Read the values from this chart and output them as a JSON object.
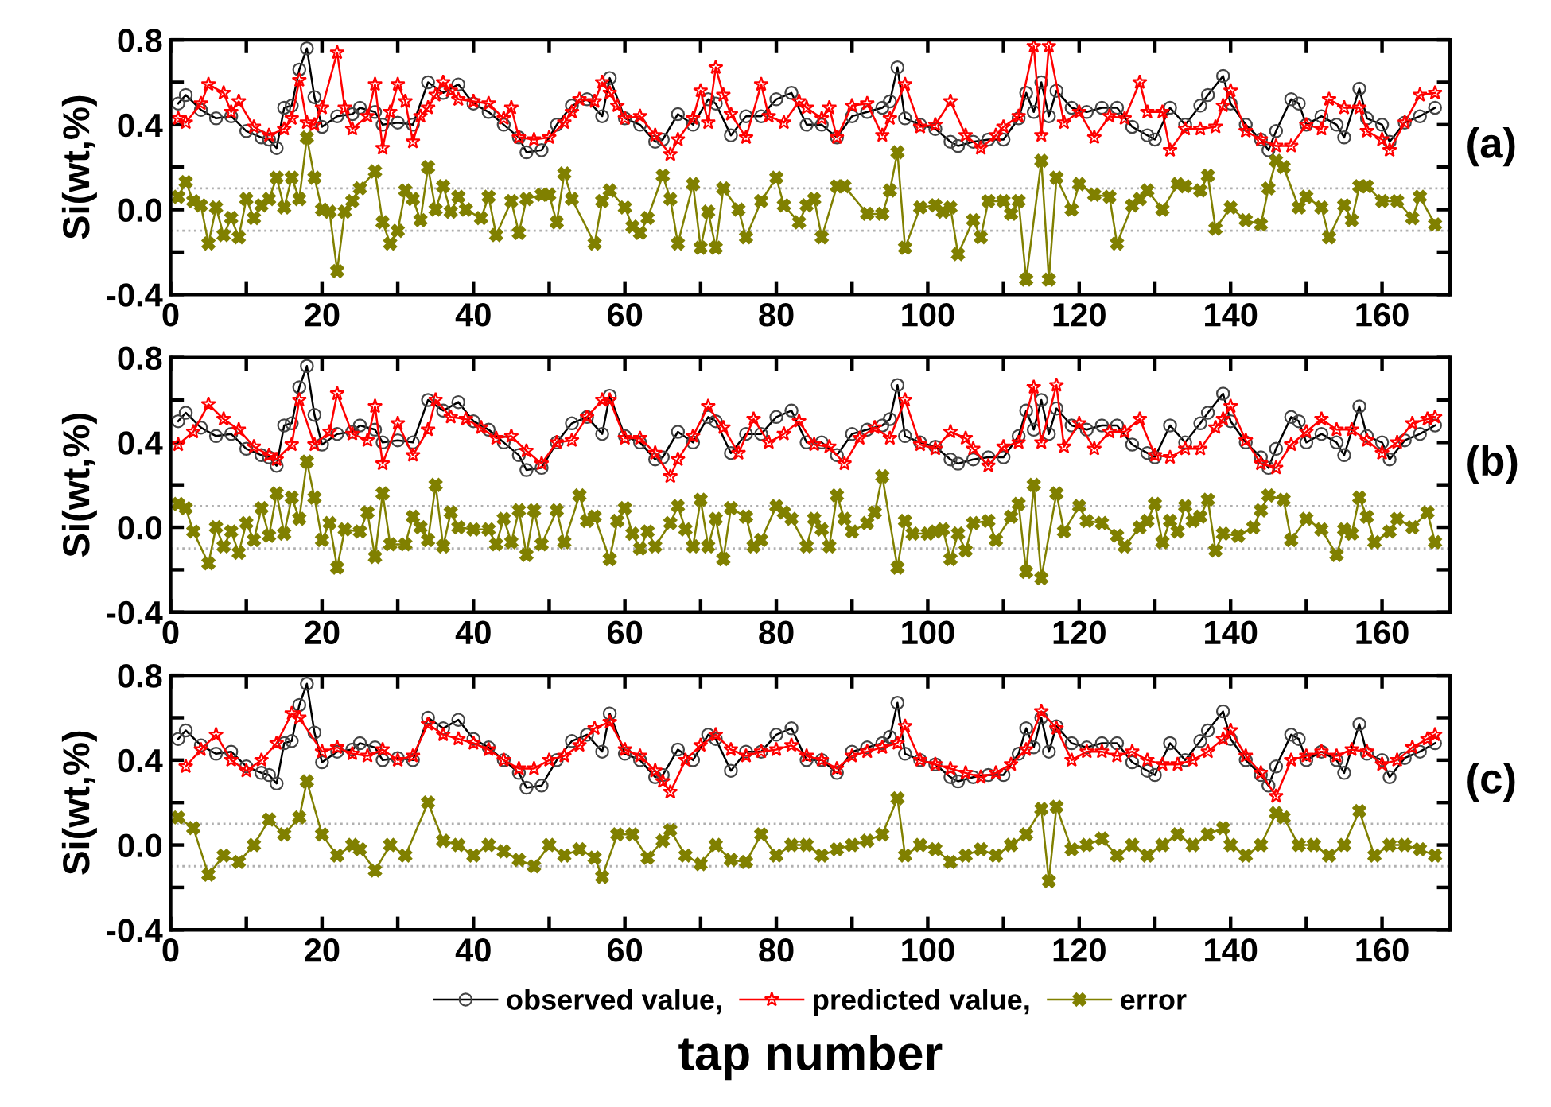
{
  "chart_data": [
    {
      "type": "line",
      "ylabel": "Si(wt,%)",
      "annotations": [
        "(a)"
      ],
      "xlim": [
        0,
        169
      ],
      "ylim": [
        -0.4,
        0.8
      ],
      "xticks": [
        0,
        {
          "value": 10,
          "label": null
        },
        20,
        {
          "value": 30,
          "label": null
        },
        40,
        {
          "value": 50,
          "label": null
        },
        60,
        {
          "value": 70,
          "label": null
        },
        80,
        {
          "value": 90,
          "label": null
        },
        100,
        {
          "value": 110,
          "label": null
        },
        120,
        {
          "value": 130,
          "label": null
        },
        140,
        {
          "value": 150,
          "label": null
        },
        160
      ],
      "yticks": [
        {
          "value": -0.4,
          "label": "-0.4"
        },
        {
          "value": -0.2,
          "label": null
        },
        {
          "value": 0,
          "label": "0.0"
        },
        {
          "value": 0.2,
          "label": null
        },
        {
          "value": 0.4,
          "label": "0.4"
        },
        {
          "value": 0.6,
          "label": null
        },
        {
          "value": 0.8,
          "label": "0.8"
        }
      ],
      "grid": false,
      "legend": false,
      "line_style": "solid",
      "ref_lines": [
        {
          "axis": "y",
          "value": 0.1,
          "color": "#b0b0b0",
          "line_style": "dotted"
        },
        {
          "axis": "y",
          "value": -0.1,
          "color": "#b0b0b0",
          "line_style": "dotted"
        }
      ],
      "series": [
        {
          "color": "#000000",
          "marker": "circle",
          "x": [
            1,
            2,
            4,
            6,
            8,
            10,
            12,
            13,
            14,
            15,
            16,
            17,
            18,
            19,
            20,
            22,
            24,
            25,
            27,
            28,
            30,
            32,
            34,
            36,
            38,
            40,
            42,
            44,
            46,
            47,
            49,
            51,
            53,
            55,
            57,
            58,
            60,
            62,
            64,
            65,
            67,
            69,
            71,
            72,
            74,
            76,
            78,
            80,
            82,
            84,
            86,
            88,
            90,
            92,
            94,
            95,
            96,
            97,
            99,
            101,
            103,
            104,
            106,
            108,
            110,
            112,
            113,
            114,
            115,
            116,
            117,
            119,
            121,
            123,
            125,
            127,
            129,
            130,
            132,
            134,
            136,
            137,
            139,
            140,
            142,
            144,
            145,
            146,
            148,
            149,
            150,
            152,
            154,
            155,
            157,
            158,
            160,
            161,
            163,
            165,
            167
          ],
          "values": [
            0.5,
            0.54,
            0.47,
            0.43,
            0.44,
            0.37,
            0.34,
            0.33,
            0.29,
            0.48,
            0.49,
            0.66,
            0.76,
            0.53,
            0.39,
            0.44,
            0.45,
            0.48,
            0.46,
            0.4,
            0.41,
            0.4,
            0.6,
            0.55,
            0.59,
            0.5,
            0.46,
            0.4,
            0.34,
            0.27,
            0.28,
            0.4,
            0.49,
            0.52,
            0.44,
            0.62,
            0.43,
            0.4,
            0.32,
            0.33,
            0.45,
            0.4,
            0.52,
            0.5,
            0.35,
            0.44,
            0.44,
            0.52,
            0.55,
            0.4,
            0.4,
            0.34,
            0.44,
            0.46,
            0.48,
            0.51,
            0.67,
            0.43,
            0.4,
            0.38,
            0.32,
            0.3,
            0.32,
            0.33,
            0.33,
            0.43,
            0.55,
            0.46,
            0.6,
            0.44,
            0.56,
            0.48,
            0.46,
            0.48,
            0.48,
            0.39,
            0.35,
            0.33,
            0.48,
            0.4,
            0.49,
            0.54,
            0.63,
            0.5,
            0.4,
            0.33,
            0.28,
            0.37,
            0.52,
            0.5,
            0.4,
            0.44,
            0.4,
            0.34,
            0.57,
            0.43,
            0.4,
            0.32,
            0.41,
            0.44,
            0.48
          ]
        },
        {
          "color": "#ff0000",
          "marker": "star",
          "x": [
            1,
            2,
            4,
            5,
            7,
            8,
            9,
            11,
            13,
            15,
            16,
            17,
            18,
            19,
            20,
            22,
            23,
            24,
            26,
            27,
            28,
            29,
            30,
            31,
            32,
            33,
            34,
            35,
            36,
            37,
            38,
            40,
            42,
            44,
            45,
            46,
            48,
            50,
            52,
            53,
            54,
            56,
            57,
            58,
            59,
            60,
            62,
            64,
            66,
            67,
            69,
            70,
            71,
            72,
            73,
            74,
            76,
            78,
            79,
            81,
            83,
            84,
            86,
            87,
            88,
            90,
            92,
            94,
            95,
            97,
            99,
            101,
            103,
            105,
            107,
            109,
            110,
            112,
            114,
            115,
            116,
            118,
            120,
            122,
            124,
            126,
            128,
            129,
            131,
            132,
            134,
            136,
            138,
            139,
            140,
            142,
            144,
            146,
            148,
            150,
            152,
            153,
            155,
            157,
            158,
            160,
            161,
            163,
            165,
            167
          ],
          "values": [
            0.43,
            0.41,
            0.5,
            0.59,
            0.55,
            0.46,
            0.51,
            0.39,
            0.35,
            0.38,
            0.43,
            0.61,
            0.41,
            0.4,
            0.48,
            0.74,
            0.48,
            0.38,
            0.44,
            0.59,
            0.29,
            0.46,
            0.59,
            0.51,
            0.32,
            0.44,
            0.48,
            0.54,
            0.6,
            0.56,
            0.52,
            0.51,
            0.5,
            0.43,
            0.48,
            0.34,
            0.33,
            0.34,
            0.41,
            0.46,
            0.52,
            0.51,
            0.6,
            0.55,
            0.49,
            0.43,
            0.44,
            0.35,
            0.26,
            0.33,
            0.43,
            0.56,
            0.41,
            0.67,
            0.54,
            0.45,
            0.34,
            0.59,
            0.44,
            0.41,
            0.51,
            0.48,
            0.43,
            0.48,
            0.34,
            0.49,
            0.5,
            0.35,
            0.43,
            0.59,
            0.39,
            0.4,
            0.51,
            0.35,
            0.29,
            0.35,
            0.39,
            0.44,
            0.77,
            0.35,
            0.77,
            0.41,
            0.46,
            0.34,
            0.44,
            0.43,
            0.6,
            0.46,
            0.46,
            0.28,
            0.38,
            0.38,
            0.39,
            0.49,
            0.56,
            0.37,
            0.33,
            0.3,
            0.3,
            0.4,
            0.38,
            0.52,
            0.48,
            0.48,
            0.37,
            0.33,
            0.28,
            0.41,
            0.54,
            0.55
          ]
        },
        {
          "color": "#808000",
          "marker": "cross",
          "x": [
            1,
            2,
            3,
            4,
            5,
            6,
            7,
            8,
            9,
            10,
            11,
            12,
            13,
            14,
            15,
            16,
            17,
            18,
            19,
            20,
            21,
            22,
            23,
            24,
            25,
            27,
            28,
            29,
            30,
            31,
            32,
            33,
            34,
            35,
            36,
            37,
            38,
            39,
            41,
            42,
            43,
            45,
            46,
            47,
            49,
            50,
            51,
            52,
            53,
            56,
            57,
            58,
            60,
            61,
            62,
            63,
            65,
            66,
            67,
            69,
            70,
            71,
            72,
            73,
            75,
            76,
            78,
            80,
            81,
            83,
            84,
            85,
            86,
            88,
            89,
            92,
            94,
            95,
            96,
            97,
            99,
            101,
            102,
            103,
            104,
            106,
            107,
            108,
            110,
            111,
            112,
            113,
            115,
            116,
            117,
            119,
            120,
            122,
            124,
            125,
            127,
            128,
            129,
            131,
            133,
            134,
            136,
            137,
            138,
            140,
            142,
            144,
            145,
            146,
            147,
            149,
            150,
            152,
            153,
            155,
            156,
            157,
            158,
            160,
            162,
            164,
            165,
            167
          ],
          "values": [
            0.06,
            0.13,
            0.04,
            0.02,
            -0.16,
            0.01,
            -0.12,
            -0.04,
            -0.13,
            0.05,
            -0.04,
            0.02,
            0.05,
            0.15,
            0.01,
            0.15,
            0.05,
            0.34,
            0.15,
            0.0,
            -0.01,
            -0.29,
            -0.01,
            0.04,
            0.1,
            0.18,
            -0.06,
            -0.16,
            -0.1,
            0.09,
            0.05,
            -0.05,
            0.2,
            0.0,
            0.11,
            -0.01,
            0.06,
            0.0,
            -0.04,
            0.06,
            -0.12,
            0.04,
            -0.11,
            0.05,
            0.07,
            0.07,
            -0.06,
            0.17,
            0.05,
            -0.16,
            0.04,
            0.09,
            0.01,
            -0.08,
            -0.11,
            -0.04,
            0.16,
            0.05,
            -0.16,
            0.12,
            -0.18,
            -0.01,
            -0.18,
            0.1,
            0.0,
            -0.13,
            0.04,
            0.15,
            0.02,
            -0.06,
            0.02,
            0.05,
            -0.13,
            0.11,
            0.11,
            -0.02,
            -0.02,
            0.09,
            0.27,
            -0.18,
            0.01,
            0.02,
            -0.01,
            0.01,
            -0.21,
            -0.05,
            -0.13,
            0.04,
            0.04,
            -0.02,
            0.04,
            -0.33,
            0.23,
            -0.33,
            0.15,
            0.0,
            0.12,
            0.07,
            0.06,
            -0.16,
            0.02,
            0.05,
            0.09,
            0.0,
            0.12,
            0.11,
            0.09,
            0.16,
            -0.09,
            0.01,
            -0.05,
            -0.07,
            0.1,
            0.23,
            0.2,
            0.01,
            0.06,
            0.01,
            -0.13,
            0.02,
            -0.05,
            0.11,
            0.11,
            0.04,
            0.04,
            -0.04,
            0.06,
            -0.07
          ]
        }
      ]
    },
    {
      "type": "line",
      "ylabel": "Si(wt,%)",
      "annotations": [
        "(b)"
      ],
      "xlim": [
        0,
        169
      ],
      "ylim": [
        -0.4,
        0.8
      ],
      "xticks": [
        0,
        {
          "value": 10,
          "label": null
        },
        20,
        {
          "value": 30,
          "label": null
        },
        40,
        {
          "value": 50,
          "label": null
        },
        60,
        {
          "value": 70,
          "label": null
        },
        80,
        {
          "value": 90,
          "label": null
        },
        100,
        {
          "value": 110,
          "label": null
        },
        120,
        {
          "value": 130,
          "label": null
        },
        140,
        {
          "value": 150,
          "label": null
        },
        160
      ],
      "yticks": [
        {
          "value": -0.4,
          "label": "-0.4"
        },
        {
          "value": -0.2,
          "label": null
        },
        {
          "value": 0,
          "label": "0.0"
        },
        {
          "value": 0.2,
          "label": null
        },
        {
          "value": 0.4,
          "label": "0.4"
        },
        {
          "value": 0.6,
          "label": null
        },
        {
          "value": 0.8,
          "label": "0.8"
        }
      ],
      "grid": false,
      "legend": false,
      "line_style": "solid",
      "ref_lines": [
        {
          "axis": "y",
          "value": 0.1,
          "color": "#b0b0b0",
          "line_style": "dotted"
        },
        {
          "axis": "y",
          "value": -0.1,
          "color": "#b0b0b0",
          "line_style": "dotted"
        }
      ],
      "series": [
        {
          "color": "#000000",
          "marker": "circle",
          "x": [
            1,
            2,
            4,
            6,
            8,
            10,
            12,
            13,
            14,
            15,
            16,
            17,
            18,
            19,
            20,
            22,
            24,
            25,
            27,
            28,
            30,
            32,
            34,
            36,
            38,
            40,
            42,
            44,
            46,
            47,
            49,
            51,
            53,
            55,
            57,
            58,
            60,
            62,
            64,
            65,
            67,
            69,
            71,
            72,
            74,
            76,
            78,
            80,
            82,
            84,
            86,
            88,
            90,
            92,
            94,
            95,
            96,
            97,
            99,
            101,
            103,
            104,
            106,
            108,
            110,
            112,
            113,
            114,
            115,
            116,
            117,
            119,
            121,
            123,
            125,
            127,
            129,
            130,
            132,
            134,
            136,
            137,
            139,
            140,
            142,
            144,
            145,
            146,
            148,
            149,
            150,
            152,
            154,
            155,
            157,
            158,
            160,
            161,
            163,
            165,
            167
          ],
          "values": [
            0.5,
            0.54,
            0.47,
            0.43,
            0.44,
            0.37,
            0.34,
            0.33,
            0.29,
            0.48,
            0.49,
            0.66,
            0.76,
            0.53,
            0.39,
            0.44,
            0.45,
            0.48,
            0.46,
            0.4,
            0.41,
            0.4,
            0.6,
            0.55,
            0.59,
            0.5,
            0.46,
            0.4,
            0.34,
            0.27,
            0.28,
            0.4,
            0.49,
            0.52,
            0.44,
            0.62,
            0.43,
            0.4,
            0.32,
            0.33,
            0.45,
            0.4,
            0.52,
            0.5,
            0.35,
            0.44,
            0.44,
            0.52,
            0.55,
            0.4,
            0.4,
            0.34,
            0.44,
            0.46,
            0.48,
            0.51,
            0.67,
            0.43,
            0.4,
            0.38,
            0.32,
            0.3,
            0.32,
            0.33,
            0.33,
            0.43,
            0.55,
            0.46,
            0.6,
            0.44,
            0.56,
            0.48,
            0.46,
            0.48,
            0.48,
            0.39,
            0.35,
            0.33,
            0.48,
            0.4,
            0.49,
            0.54,
            0.63,
            0.5,
            0.4,
            0.33,
            0.28,
            0.37,
            0.52,
            0.5,
            0.4,
            0.44,
            0.4,
            0.34,
            0.57,
            0.43,
            0.4,
            0.32,
            0.41,
            0.44,
            0.48
          ]
        },
        {
          "color": "#ff0000",
          "marker": "star",
          "x": [
            1,
            3,
            5,
            7,
            9,
            11,
            13,
            14,
            16,
            17,
            19,
            21,
            22,
            24,
            26,
            27,
            28,
            30,
            32,
            34,
            35,
            37,
            39,
            41,
            43,
            45,
            47,
            49,
            51,
            53,
            55,
            57,
            58,
            60,
            62,
            64,
            66,
            67,
            69,
            71,
            73,
            75,
            77,
            79,
            81,
            83,
            85,
            87,
            89,
            91,
            93,
            95,
            97,
            99,
            101,
            103,
            105,
            106,
            108,
            110,
            112,
            114,
            115,
            117,
            118,
            120,
            122,
            124,
            126,
            128,
            130,
            132,
            134,
            136,
            138,
            139,
            140,
            142,
            144,
            146,
            148,
            150,
            152,
            154,
            156,
            158,
            160,
            162,
            164,
            166,
            167
          ],
          "values": [
            0.39,
            0.45,
            0.58,
            0.51,
            0.46,
            0.38,
            0.34,
            0.32,
            0.39,
            0.6,
            0.39,
            0.45,
            0.63,
            0.44,
            0.41,
            0.57,
            0.3,
            0.49,
            0.34,
            0.46,
            0.6,
            0.52,
            0.51,
            0.47,
            0.42,
            0.43,
            0.36,
            0.3,
            0.4,
            0.41,
            0.52,
            0.6,
            0.6,
            0.42,
            0.42,
            0.35,
            0.24,
            0.32,
            0.43,
            0.57,
            0.47,
            0.35,
            0.51,
            0.4,
            0.44,
            0.5,
            0.39,
            0.38,
            0.3,
            0.42,
            0.47,
            0.42,
            0.6,
            0.39,
            0.37,
            0.45,
            0.42,
            0.37,
            0.29,
            0.38,
            0.4,
            0.66,
            0.4,
            0.67,
            0.38,
            0.49,
            0.37,
            0.45,
            0.45,
            0.51,
            0.34,
            0.33,
            0.37,
            0.37,
            0.47,
            0.51,
            0.57,
            0.41,
            0.3,
            0.28,
            0.39,
            0.45,
            0.51,
            0.46,
            0.46,
            0.41,
            0.35,
            0.4,
            0.49,
            0.51,
            0.52
          ]
        },
        {
          "color": "#808000",
          "marker": "cross",
          "x": [
            1,
            2,
            3,
            5,
            6,
            7,
            8,
            9,
            10,
            11,
            12,
            13,
            14,
            15,
            16,
            17,
            18,
            19,
            20,
            21,
            22,
            23,
            25,
            26,
            27,
            28,
            29,
            31,
            32,
            33,
            34,
            35,
            36,
            37,
            38,
            40,
            42,
            43,
            44,
            45,
            46,
            47,
            48,
            49,
            51,
            52,
            54,
            55,
            56,
            58,
            59,
            60,
            61,
            62,
            63,
            64,
            66,
            67,
            68,
            69,
            70,
            71,
            72,
            73,
            74,
            76,
            77,
            78,
            80,
            81,
            82,
            84,
            85,
            86,
            87,
            88,
            89,
            90,
            92,
            93,
            94,
            96,
            97,
            98,
            100,
            101,
            102,
            103,
            104,
            105,
            106,
            108,
            109,
            111,
            112,
            113,
            114,
            115,
            117,
            118,
            120,
            121,
            123,
            125,
            126,
            128,
            129,
            130,
            131,
            132,
            133,
            134,
            135,
            136,
            137,
            138,
            139,
            141,
            143,
            144,
            145,
            147,
            148,
            150,
            152,
            154,
            155,
            156,
            157,
            158,
            159,
            161,
            162,
            164,
            166,
            167
          ],
          "values": [
            0.11,
            0.09,
            -0.02,
            -0.17,
            0.0,
            -0.09,
            -0.02,
            -0.12,
            0.02,
            -0.06,
            0.09,
            -0.04,
            0.16,
            -0.03,
            0.14,
            0.04,
            0.31,
            0.14,
            -0.06,
            0.02,
            -0.19,
            -0.01,
            -0.02,
            0.07,
            -0.14,
            0.16,
            -0.08,
            -0.08,
            0.05,
            0.0,
            -0.06,
            0.2,
            -0.09,
            0.07,
            0.0,
            -0.01,
            -0.01,
            -0.08,
            0.04,
            -0.07,
            0.08,
            -0.13,
            0.08,
            -0.08,
            0.08,
            -0.07,
            0.15,
            0.03,
            0.05,
            -0.15,
            0.03,
            0.09,
            -0.03,
            -0.1,
            -0.02,
            -0.09,
            0.02,
            0.1,
            -0.01,
            -0.09,
            0.13,
            -0.09,
            0.04,
            -0.15,
            0.09,
            0.05,
            -0.09,
            -0.06,
            0.1,
            0.07,
            0.04,
            -0.09,
            0.04,
            -0.01,
            -0.09,
            0.15,
            0.04,
            -0.02,
            0.02,
            0.07,
            0.24,
            -0.19,
            0.03,
            -0.03,
            -0.03,
            -0.02,
            -0.01,
            -0.15,
            -0.03,
            -0.11,
            0.02,
            0.03,
            -0.06,
            0.05,
            0.11,
            -0.21,
            0.2,
            -0.24,
            0.16,
            -0.02,
            0.1,
            0.03,
            0.02,
            -0.04,
            -0.09,
            0.0,
            0.03,
            0.11,
            -0.07,
            0.03,
            -0.02,
            0.1,
            0.03,
            0.05,
            0.13,
            -0.11,
            -0.03,
            -0.04,
            0.0,
            0.08,
            0.15,
            0.13,
            -0.06,
            0.04,
            -0.01,
            -0.13,
            -0.01,
            -0.03,
            0.14,
            0.05,
            -0.07,
            -0.02,
            0.04,
            0.0,
            0.07,
            -0.07
          ]
        }
      ]
    },
    {
      "type": "line",
      "ylabel": "Si(wt,%)",
      "xlabel": "tap number",
      "annotations": [
        "(c)"
      ],
      "xlim": [
        0,
        169
      ],
      "ylim": [
        -0.4,
        0.8
      ],
      "xticks": [
        0,
        {
          "value": 10,
          "label": null
        },
        20,
        {
          "value": 30,
          "label": null
        },
        40,
        {
          "value": 50,
          "label": null
        },
        60,
        {
          "value": 70,
          "label": null
        },
        80,
        {
          "value": 90,
          "label": null
        },
        100,
        {
          "value": 110,
          "label": null
        },
        120,
        {
          "value": 130,
          "label": null
        },
        140,
        {
          "value": 150,
          "label": null
        },
        160
      ],
      "yticks": [
        {
          "value": -0.4,
          "label": "-0.4"
        },
        {
          "value": -0.2,
          "label": null
        },
        {
          "value": 0,
          "label": "0.0"
        },
        {
          "value": 0.2,
          "label": null
        },
        {
          "value": 0.4,
          "label": "0.4"
        },
        {
          "value": 0.6,
          "label": null
        },
        {
          "value": 0.8,
          "label": "0.8"
        }
      ],
      "grid": false,
      "legend": "bottom",
      "line_style": "solid",
      "ref_lines": [
        {
          "axis": "y",
          "value": 0.1,
          "color": "#b0b0b0",
          "line_style": "dotted"
        },
        {
          "axis": "y",
          "value": -0.1,
          "color": "#b0b0b0",
          "line_style": "dotted"
        }
      ],
      "series": [
        {
          "name": "observed value,",
          "color": "#000000",
          "marker": "circle",
          "x": [
            1,
            2,
            4,
            6,
            8,
            10,
            12,
            13,
            14,
            15,
            16,
            17,
            18,
            19,
            20,
            22,
            24,
            25,
            27,
            28,
            30,
            32,
            34,
            36,
            38,
            40,
            42,
            44,
            46,
            47,
            49,
            51,
            53,
            55,
            57,
            58,
            60,
            62,
            64,
            65,
            67,
            69,
            71,
            72,
            74,
            76,
            78,
            80,
            82,
            84,
            86,
            88,
            90,
            92,
            94,
            95,
            96,
            97,
            99,
            101,
            103,
            104,
            106,
            108,
            110,
            112,
            113,
            114,
            115,
            116,
            117,
            119,
            121,
            123,
            125,
            127,
            129,
            130,
            132,
            134,
            136,
            137,
            139,
            140,
            142,
            144,
            145,
            146,
            148,
            149,
            150,
            152,
            154,
            155,
            157,
            158,
            160,
            161,
            163,
            165,
            167
          ],
          "values": [
            0.5,
            0.54,
            0.47,
            0.43,
            0.44,
            0.37,
            0.34,
            0.33,
            0.29,
            0.48,
            0.49,
            0.66,
            0.76,
            0.53,
            0.39,
            0.44,
            0.45,
            0.48,
            0.46,
            0.4,
            0.41,
            0.4,
            0.6,
            0.55,
            0.59,
            0.5,
            0.46,
            0.4,
            0.34,
            0.27,
            0.28,
            0.4,
            0.49,
            0.52,
            0.44,
            0.62,
            0.43,
            0.4,
            0.32,
            0.33,
            0.45,
            0.4,
            0.52,
            0.5,
            0.35,
            0.44,
            0.44,
            0.52,
            0.55,
            0.4,
            0.4,
            0.34,
            0.44,
            0.46,
            0.48,
            0.51,
            0.67,
            0.43,
            0.4,
            0.38,
            0.32,
            0.3,
            0.32,
            0.33,
            0.33,
            0.43,
            0.55,
            0.46,
            0.6,
            0.44,
            0.56,
            0.48,
            0.46,
            0.48,
            0.48,
            0.39,
            0.35,
            0.33,
            0.48,
            0.4,
            0.49,
            0.54,
            0.63,
            0.5,
            0.4,
            0.33,
            0.28,
            0.37,
            0.52,
            0.5,
            0.4,
            0.44,
            0.4,
            0.34,
            0.57,
            0.43,
            0.4,
            0.32,
            0.41,
            0.44,
            0.48
          ]
        },
        {
          "name": "predicted value,",
          "color": "#ff0000",
          "marker": "star",
          "x": [
            2,
            4,
            6,
            8,
            10,
            12,
            14,
            16,
            17,
            20,
            22,
            24,
            26,
            28,
            30,
            32,
            34,
            36,
            38,
            40,
            42,
            44,
            46,
            48,
            50,
            52,
            54,
            56,
            58,
            60,
            62,
            64,
            65,
            66,
            68,
            70,
            72,
            74,
            76,
            78,
            80,
            82,
            84,
            86,
            88,
            90,
            92,
            94,
            96,
            97,
            99,
            101,
            103,
            105,
            107,
            109,
            111,
            113,
            115,
            117,
            119,
            121,
            123,
            125,
            127,
            129,
            131,
            133,
            135,
            137,
            139,
            140,
            142,
            144,
            146,
            148,
            150,
            152,
            154,
            156,
            158,
            160,
            162,
            164,
            166,
            167
          ],
          "values": [
            0.37,
            0.45,
            0.52,
            0.4,
            0.35,
            0.4,
            0.48,
            0.62,
            0.6,
            0.44,
            0.46,
            0.43,
            0.42,
            0.45,
            0.4,
            0.42,
            0.57,
            0.52,
            0.5,
            0.48,
            0.45,
            0.4,
            0.36,
            0.36,
            0.4,
            0.42,
            0.47,
            0.55,
            0.58,
            0.45,
            0.42,
            0.35,
            0.3,
            0.25,
            0.4,
            0.47,
            0.52,
            0.45,
            0.42,
            0.44,
            0.45,
            0.47,
            0.42,
            0.4,
            0.36,
            0.42,
            0.44,
            0.46,
            0.48,
            0.56,
            0.4,
            0.38,
            0.36,
            0.34,
            0.32,
            0.34,
            0.38,
            0.45,
            0.63,
            0.55,
            0.4,
            0.44,
            0.44,
            0.42,
            0.44,
            0.4,
            0.38,
            0.38,
            0.4,
            0.44,
            0.5,
            0.54,
            0.42,
            0.34,
            0.23,
            0.4,
            0.42,
            0.44,
            0.42,
            0.45,
            0.44,
            0.38,
            0.4,
            0.46,
            0.5,
            0.52
          ]
        },
        {
          "name": "error",
          "color": "#808000",
          "marker": "cross",
          "x": [
            1,
            3,
            5,
            7,
            9,
            11,
            13,
            15,
            17,
            18,
            20,
            22,
            24,
            25,
            27,
            29,
            31,
            34,
            36,
            38,
            40,
            42,
            44,
            46,
            48,
            50,
            52,
            54,
            56,
            57,
            59,
            61,
            63,
            65,
            66,
            68,
            70,
            72,
            74,
            76,
            78,
            80,
            82,
            84,
            86,
            88,
            90,
            92,
            94,
            96,
            97,
            99,
            101,
            103,
            105,
            107,
            109,
            111,
            113,
            115,
            116,
            117,
            119,
            121,
            123,
            125,
            127,
            129,
            131,
            133,
            135,
            137,
            139,
            140,
            142,
            144,
            146,
            147,
            149,
            151,
            153,
            155,
            157,
            159,
            161,
            163,
            165,
            167
          ],
          "values": [
            0.13,
            0.08,
            -0.14,
            -0.05,
            -0.08,
            0.0,
            0.12,
            0.05,
            0.13,
            0.3,
            0.05,
            -0.05,
            0.0,
            -0.02,
            -0.12,
            0.0,
            -0.05,
            0.2,
            0.02,
            0.0,
            -0.05,
            0.0,
            -0.03,
            -0.07,
            -0.1,
            0.0,
            -0.05,
            -0.02,
            -0.06,
            -0.15,
            0.05,
            0.05,
            -0.06,
            0.02,
            0.07,
            -0.05,
            -0.09,
            0.0,
            -0.07,
            -0.08,
            0.05,
            -0.05,
            0.0,
            0.0,
            -0.05,
            -0.02,
            0.0,
            0.02,
            0.05,
            0.22,
            -0.05,
            0.0,
            -0.02,
            -0.08,
            -0.05,
            -0.02,
            -0.05,
            0.0,
            0.05,
            0.17,
            -0.17,
            0.18,
            -0.02,
            0.0,
            0.03,
            -0.05,
            0.0,
            -0.05,
            0.0,
            0.05,
            0.0,
            0.05,
            0.08,
            0.0,
            -0.05,
            0.0,
            0.15,
            0.13,
            0.0,
            0.0,
            -0.05,
            0.0,
            0.16,
            -0.05,
            0.0,
            0.0,
            -0.02,
            -0.05
          ]
        }
      ]
    }
  ]
}
